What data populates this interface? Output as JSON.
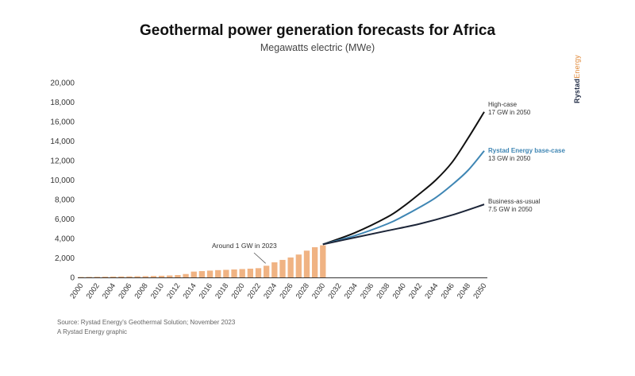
{
  "header": {
    "title": "Geothermal power generation forecasts for Africa",
    "subtitle": "Megawatts electric (MWe)"
  },
  "brand": {
    "part1": "Rystad",
    "part2": "Energy"
  },
  "source": {
    "line1": "Source: Rystad Energy's Geothermal Solution; November 2023",
    "line2": "A Rystad Energy graphic"
  },
  "colors": {
    "bar": "#f0b383",
    "high": "#111111",
    "base": "#3f86b4",
    "bau": "#1c2538",
    "axis": "#333333"
  },
  "chart_data": {
    "type": "bar+line",
    "ylim": [
      0,
      20000
    ],
    "yticks": [
      "0",
      "2,000",
      "4,000",
      "6,000",
      "8,000",
      "10,000",
      "12,000",
      "14,000",
      "16,000",
      "18,000",
      "20,000"
    ],
    "yticks_values": [
      0,
      2000,
      4000,
      6000,
      8000,
      10000,
      12000,
      14000,
      16000,
      18000,
      20000
    ],
    "x_years": [
      2000,
      2050
    ],
    "xticks": [
      "2000",
      "2002",
      "2004",
      "2006",
      "2008",
      "2010",
      "2012",
      "2014",
      "2016",
      "2018",
      "2020",
      "2022",
      "2024",
      "2026",
      "2028",
      "2030",
      "2032",
      "2034",
      "2036",
      "2038",
      "2040",
      "2042",
      "2044",
      "2046",
      "2048",
      "2050"
    ],
    "bars": {
      "years": [
        2000,
        2001,
        2002,
        2003,
        2004,
        2005,
        2006,
        2007,
        2008,
        2009,
        2010,
        2011,
        2012,
        2013,
        2014,
        2015,
        2016,
        2017,
        2018,
        2019,
        2020,
        2021,
        2022,
        2023,
        2024,
        2025,
        2026,
        2027,
        2028,
        2029,
        2030
      ],
      "values": [
        50,
        60,
        70,
        80,
        90,
        100,
        110,
        120,
        130,
        150,
        170,
        200,
        240,
        350,
        600,
        650,
        700,
        750,
        780,
        820,
        860,
        900,
        950,
        1200,
        1550,
        1800,
        2050,
        2350,
        2750,
        3100,
        3300
      ]
    },
    "series": [
      {
        "name": "High-case",
        "note": "17 GW in 2050",
        "color_key": "high",
        "years": [
          2030,
          2034,
          2038,
          2040,
          2042,
          2044,
          2046,
          2048,
          2050
        ],
        "values": [
          3400,
          4600,
          6200,
          7300,
          8600,
          10000,
          11800,
          14300,
          17000
        ]
      },
      {
        "name": "Rystad Energy base-case",
        "note": "13 GW in 2050",
        "color_key": "base",
        "years": [
          2030,
          2034,
          2038,
          2040,
          2042,
          2044,
          2046,
          2048,
          2050
        ],
        "values": [
          3400,
          4300,
          5500,
          6300,
          7200,
          8200,
          9500,
          11000,
          13000
        ]
      },
      {
        "name": "Business-as-usual",
        "note": "7.5 GW in 2050",
        "color_key": "bau",
        "years": [
          2030,
          2034,
          2038,
          2042,
          2046,
          2050
        ],
        "values": [
          3400,
          4100,
          4800,
          5500,
          6400,
          7500
        ]
      }
    ],
    "annotation": {
      "text": "Around 1 GW in 2023",
      "year": 2023,
      "value": 1200
    },
    "grid": false,
    "legend": "inline-right"
  }
}
